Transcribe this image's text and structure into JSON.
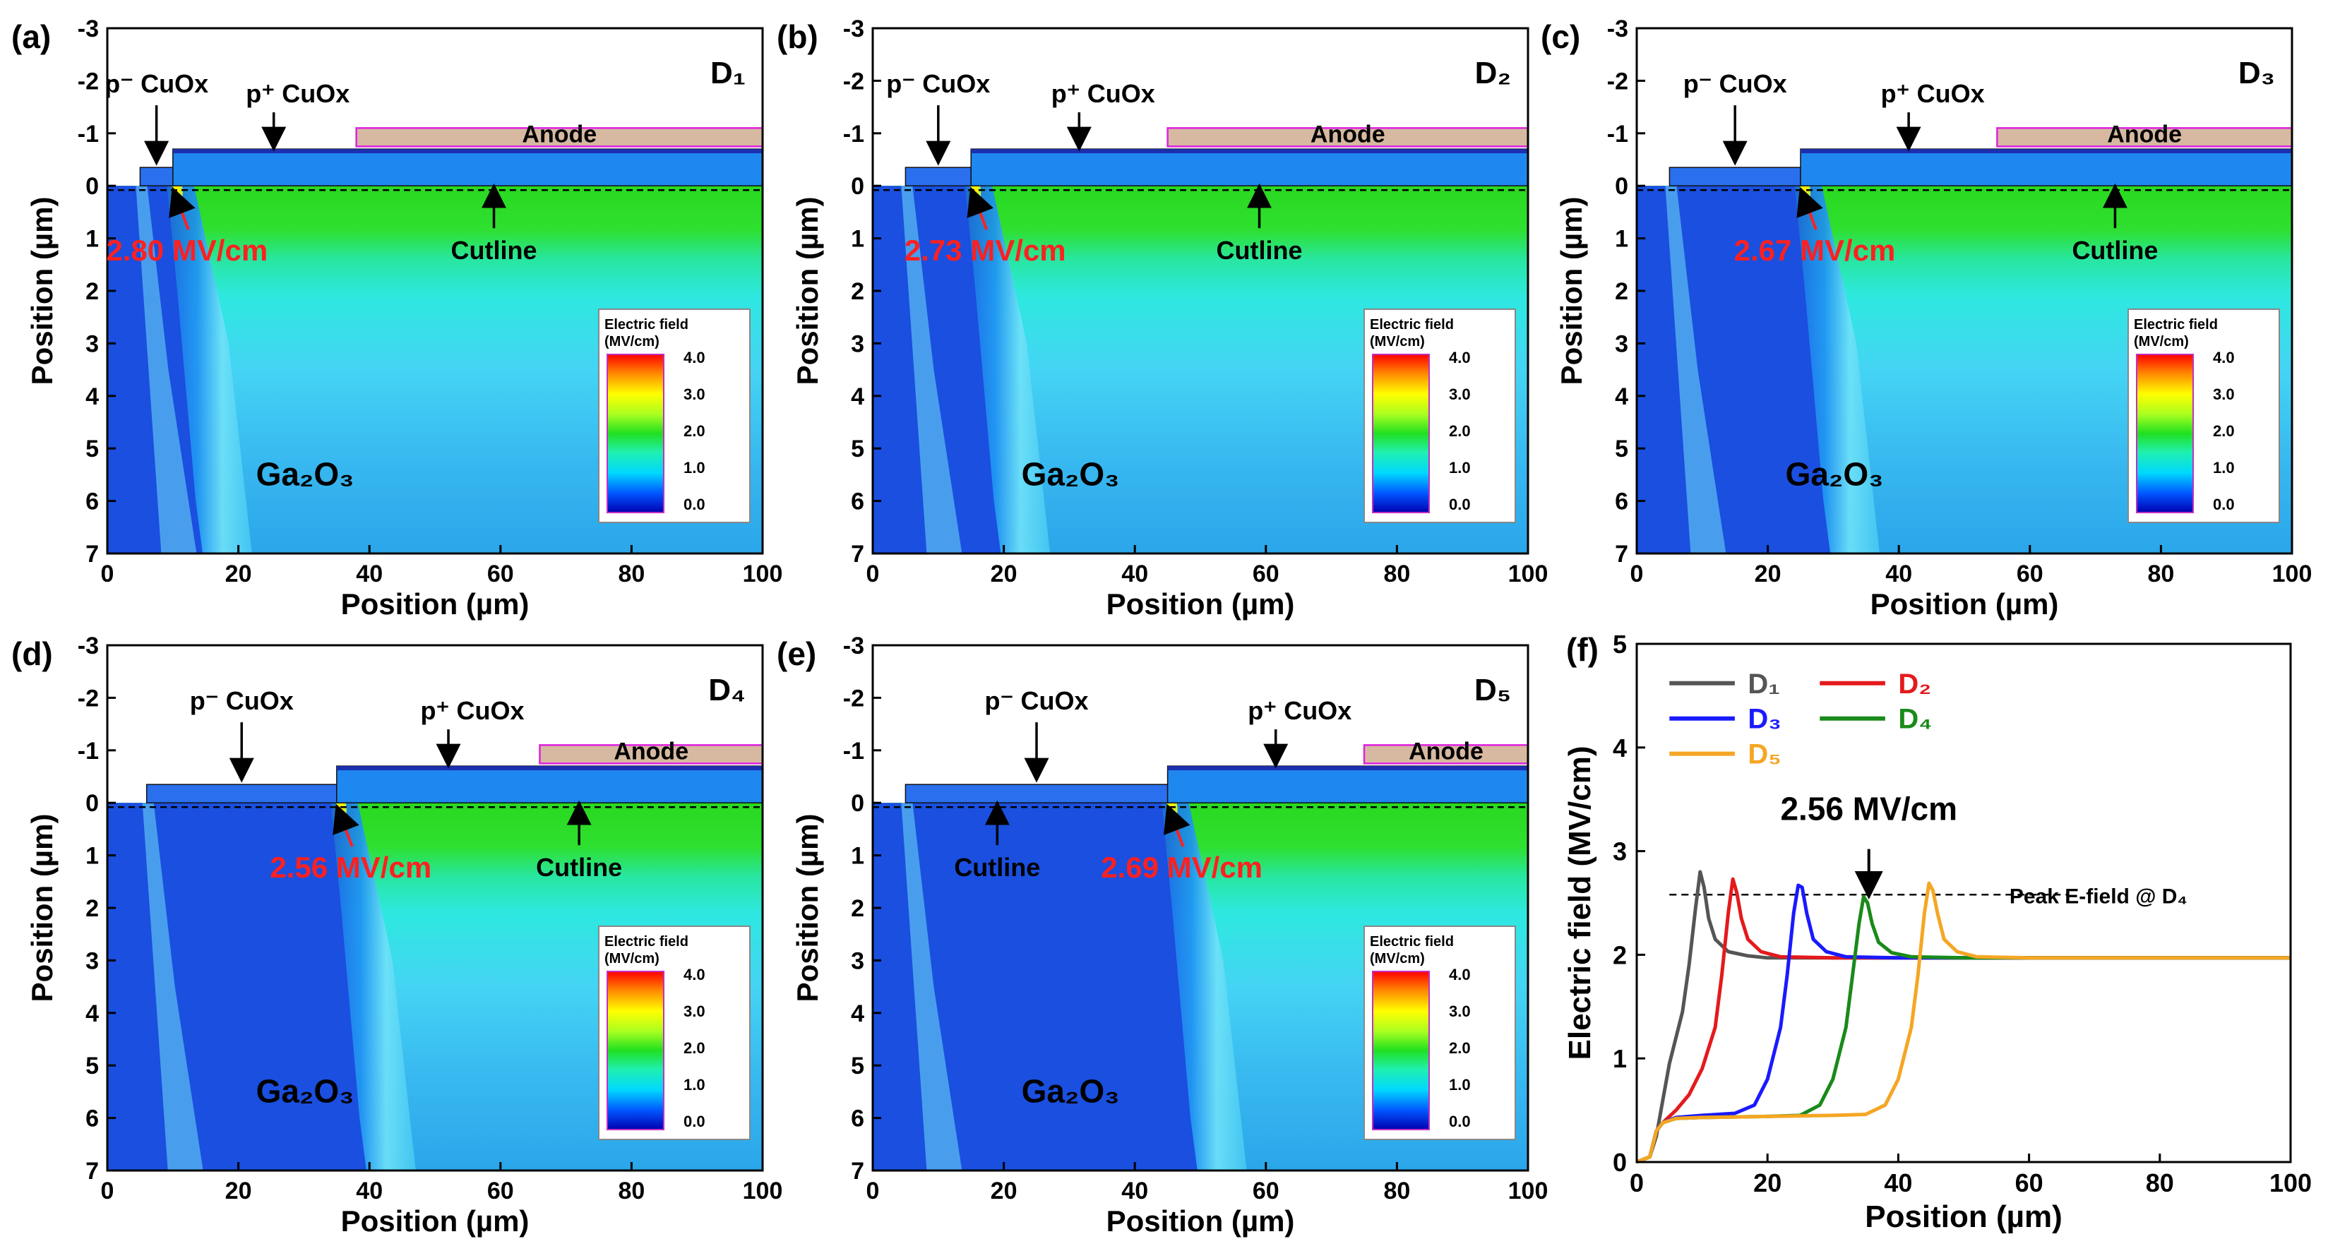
{
  "figure": {
    "common": {
      "xlabel": "Position (µm)",
      "ylabel": "Position (µm)",
      "x_range": [
        0,
        100
      ],
      "y_range": [
        -3,
        7
      ],
      "x_ticks": [
        0,
        20,
        40,
        60,
        80,
        100
      ],
      "y_ticks": [
        -3,
        -2,
        -1,
        0,
        1,
        2,
        3,
        4,
        5,
        6,
        7
      ],
      "legend_title_line1": "Electric field",
      "legend_title_line2": "(MV/cm)",
      "legend_ticks": [
        "4.0",
        "3.0",
        "2.0",
        "1.0",
        "0.0"
      ],
      "material_label": "Ga₂O₃",
      "anode_label": "Anode",
      "p_minus_label": "p⁻ CuOx",
      "p_plus_label": "p⁺ CuOx",
      "cutline_label": "Cutline"
    },
    "panels": [
      {
        "id": "(a)",
        "device": "D₁",
        "trench_x": 5,
        "step_x": 10,
        "anode_x": 38,
        "peak_x": 10,
        "peak_label": "2.80 MV/cm",
        "cutline_x": 59
      },
      {
        "id": "(b)",
        "device": "D₂",
        "trench_x": 5,
        "step_x": 15,
        "anode_x": 45,
        "peak_x": 15,
        "peak_label": "2.73 MV/cm",
        "cutline_x": 59
      },
      {
        "id": "(c)",
        "device": "D₃",
        "trench_x": 5,
        "step_x": 25,
        "anode_x": 55,
        "peak_x": 25,
        "peak_label": "2.67 MV/cm",
        "cutline_x": 73
      },
      {
        "id": "(d)",
        "device": "D₄",
        "trench_x": 6,
        "step_x": 35,
        "anode_x": 66,
        "peak_x": 35,
        "peak_label": "2.56 MV/cm",
        "cutline_x": 72
      },
      {
        "id": "(e)",
        "device": "D₅",
        "trench_x": 5,
        "step_x": 45,
        "anode_x": 75,
        "peak_x": 45,
        "peak_label": "2.69 MV/cm",
        "cutline_x": 19
      }
    ]
  },
  "chart_data": {
    "panel": "(f)",
    "type": "line",
    "xlabel": "Position (µm)",
    "ylabel": "Electric field (MV/cm)",
    "xlim": [
      0,
      100
    ],
    "ylim": [
      0,
      5
    ],
    "x_ticks": [
      0,
      20,
      40,
      60,
      80,
      100
    ],
    "y_ticks": [
      0,
      1,
      2,
      3,
      4,
      5
    ],
    "annotation": "2.56 MV/cm",
    "reference_line": {
      "y": 2.58,
      "label": "Peak E-field @ D₄"
    },
    "series": [
      {
        "name": "D₁",
        "color": "#555555",
        "x": [
          0,
          2,
          3,
          4,
          5,
          6,
          7,
          8,
          9,
          9.7,
          10.3,
          11,
          12,
          14,
          17,
          20,
          30,
          60,
          100
        ],
        "y": [
          0,
          0.05,
          0.25,
          0.6,
          0.95,
          1.2,
          1.45,
          1.9,
          2.45,
          2.8,
          2.65,
          2.35,
          2.15,
          2.03,
          1.99,
          1.97,
          1.97,
          1.97,
          1.97
        ]
      },
      {
        "name": "D₂",
        "color": "#e41a1c",
        "x": [
          0,
          2,
          3,
          4,
          6,
          8,
          10,
          12,
          13,
          14,
          14.7,
          15.3,
          16,
          17,
          19,
          22,
          30,
          60,
          100
        ],
        "y": [
          0,
          0.05,
          0.3,
          0.38,
          0.5,
          0.65,
          0.9,
          1.3,
          1.8,
          2.4,
          2.73,
          2.6,
          2.35,
          2.15,
          2.03,
          1.98,
          1.97,
          1.97,
          1.97
        ]
      },
      {
        "name": "D₃",
        "color": "#1a1aff",
        "x": [
          0,
          2,
          3,
          4,
          6,
          10,
          15,
          18,
          20,
          22,
          23,
          24,
          24.7,
          25.3,
          26,
          27,
          29,
          32,
          40,
          60,
          100
        ],
        "y": [
          0,
          0.05,
          0.3,
          0.38,
          0.43,
          0.45,
          0.47,
          0.55,
          0.8,
          1.3,
          1.8,
          2.4,
          2.67,
          2.65,
          2.4,
          2.15,
          2.03,
          1.98,
          1.97,
          1.97,
          1.97
        ]
      },
      {
        "name": "D₄",
        "color": "#1a8a1a",
        "x": [
          0,
          2,
          3,
          4,
          6,
          10,
          20,
          25,
          28,
          30,
          32,
          33,
          34,
          34.7,
          35.3,
          36,
          37,
          39,
          42,
          50,
          60,
          100
        ],
        "y": [
          0,
          0.05,
          0.3,
          0.38,
          0.42,
          0.43,
          0.44,
          0.45,
          0.55,
          0.8,
          1.3,
          1.8,
          2.3,
          2.56,
          2.5,
          2.3,
          2.12,
          2.02,
          1.98,
          1.97,
          1.97,
          1.97
        ]
      },
      {
        "name": "D₅",
        "color": "#f5a623",
        "x": [
          0,
          2,
          3,
          4,
          6,
          10,
          20,
          30,
          35,
          38,
          40,
          42,
          43,
          44,
          44.7,
          45.3,
          46,
          47,
          49,
          52,
          60,
          100
        ],
        "y": [
          0,
          0.05,
          0.3,
          0.38,
          0.42,
          0.43,
          0.44,
          0.45,
          0.46,
          0.55,
          0.8,
          1.3,
          1.8,
          2.4,
          2.69,
          2.62,
          2.4,
          2.15,
          2.03,
          1.98,
          1.97,
          1.97
        ]
      }
    ]
  }
}
